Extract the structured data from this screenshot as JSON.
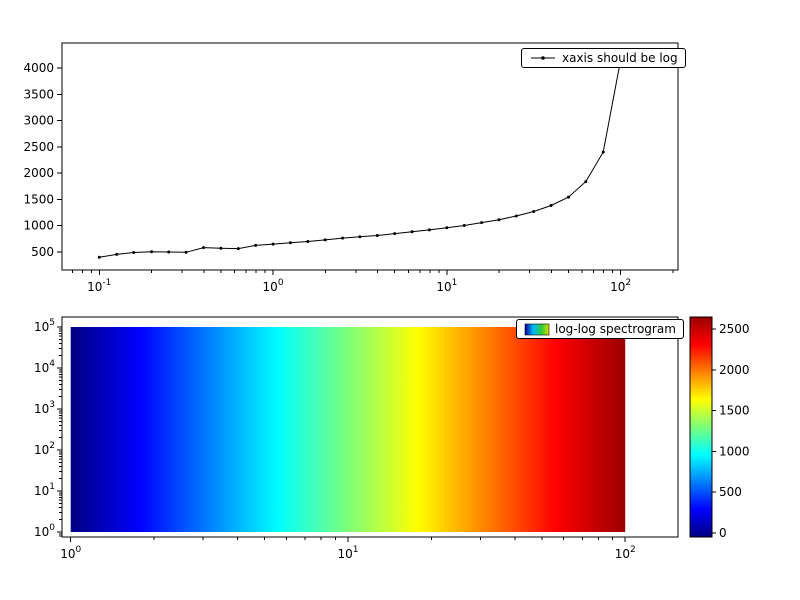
{
  "figure": {
    "background": "#ffffff",
    "axes_color": "#000000",
    "tick_label_color": "#000000"
  },
  "chart_data": [
    {
      "type": "line",
      "legend": "xaxis should be log",
      "xscale": "log",
      "yscale": "linear",
      "xlim": [
        0.061,
        214
      ],
      "ylim": [
        158,
        4476
      ],
      "xticks": [
        0.1,
        1,
        10,
        100
      ],
      "yticks": [
        500,
        1000,
        1500,
        2000,
        2500,
        3000,
        3500,
        4000
      ],
      "line_color": "#000000",
      "marker": "dot",
      "x": [
        0.1,
        0.126,
        0.158,
        0.2,
        0.251,
        0.316,
        0.398,
        0.501,
        0.631,
        0.794,
        1.0,
        1.259,
        1.585,
        1.995,
        2.512,
        3.162,
        3.981,
        5.012,
        6.31,
        7.943,
        10.0,
        12.589,
        15.849,
        19.953,
        25.119,
        31.623,
        39.811,
        50.119,
        63.096,
        79.433,
        100.0
      ],
      "y": [
        400,
        455,
        490,
        505,
        500,
        495,
        585,
        570,
        565,
        625,
        650,
        675,
        700,
        730,
        765,
        790,
        815,
        850,
        885,
        920,
        960,
        1005,
        1060,
        1115,
        1185,
        1270,
        1385,
        1545,
        1840,
        2400,
        4150
      ]
    },
    {
      "type": "heatmap",
      "legend": "log-log spectrogram",
      "xscale": "log",
      "yscale": "log",
      "xlim": [
        0.93,
        155
      ],
      "ylim": [
        0.755,
        175000
      ],
      "xticks": [
        1,
        10,
        100
      ],
      "yticks": [
        1,
        10,
        100,
        1000,
        10000,
        100000
      ],
      "extent": {
        "x": [
          1,
          100
        ],
        "y": [
          1,
          100000
        ]
      },
      "value_range": [
        0,
        2600
      ],
      "colormap": "jet",
      "colormap_stops": [
        {
          "offset": 0.0,
          "color": "#000080"
        },
        {
          "offset": 0.125,
          "color": "#0000ff"
        },
        {
          "offset": 0.25,
          "color": "#0080ff"
        },
        {
          "offset": 0.375,
          "color": "#00ffff"
        },
        {
          "offset": 0.5,
          "color": "#7dff7a"
        },
        {
          "offset": 0.625,
          "color": "#ffff00"
        },
        {
          "offset": 0.75,
          "color": "#ff8000"
        },
        {
          "offset": 0.875,
          "color": "#ff0000"
        },
        {
          "offset": 1.0,
          "color": "#9b0000"
        }
      ],
      "colorbar": {
        "range": [
          -50,
          2650
        ],
        "ticks": [
          0,
          500,
          1000,
          1500,
          2000,
          2500
        ]
      }
    }
  ]
}
